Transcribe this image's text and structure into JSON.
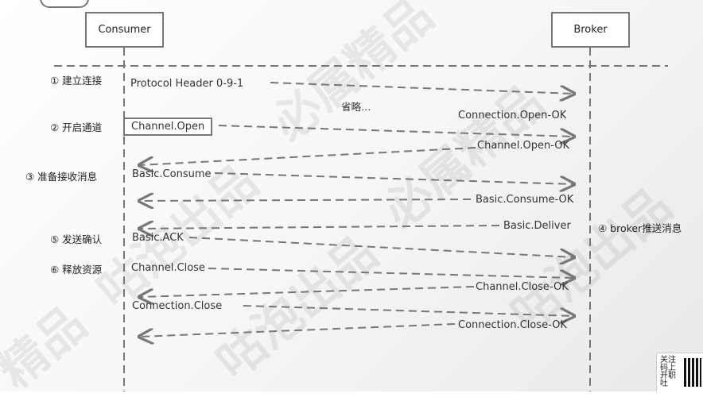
{
  "actors": {
    "consumer": "Consumer",
    "broker": "Broker"
  },
  "steps": {
    "s1": "① 建立连接",
    "s2": "② 开启通道",
    "s3": "③ 准备接收消息",
    "s4": "④ broker推送消息",
    "s5": "⑤ 发送确认",
    "s6": "⑥ 释放资源"
  },
  "messages": {
    "protocol_header": "Protocol Header 0-9-1",
    "omitted": "省略…",
    "conn_open_ok": "Connection.Open-OK",
    "channel_open": "Channel.Open",
    "channel_open_ok": "Channel.Open-OK",
    "basic_consume": "Basic.Consume",
    "basic_consume_ok": "Basic.Consume-OK",
    "basic_deliver": "Basic.Deliver",
    "basic_ack": "Basic.ACK",
    "channel_close": "Channel.Close",
    "channel_close_ok": "Channel.Close-OK",
    "connection_close": "Connection.Close",
    "connection_close_ok": "Connection.Close-OK"
  },
  "watermark": {
    "w1": "必属精品",
    "w2": "咕泡出品",
    "w3": "必属精品",
    "w4": "咕泡出品",
    "w5": "咕泡出品",
    "w6": "精品"
  },
  "qr": {
    "text": "关注码上开职吐"
  }
}
